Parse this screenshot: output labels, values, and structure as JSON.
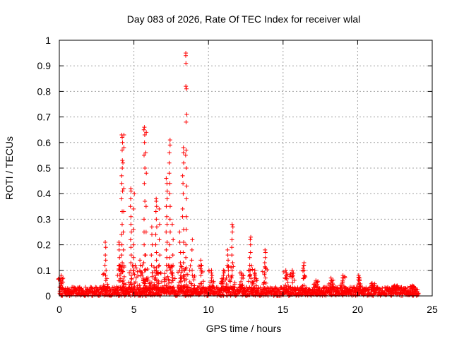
{
  "chart_data": {
    "type": "scatter",
    "title": "Day 083 of 2026, Rate Of TEC Index for receiver wlal",
    "xlabel": "GPS time / hours",
    "ylabel": "ROTI / TECUs",
    "xlim": [
      0,
      25
    ],
    "ylim": [
      0,
      1
    ],
    "x_ticks": [
      0,
      5,
      10,
      15,
      20,
      25
    ],
    "y_ticks": [
      0,
      0.1,
      0.2,
      0.3,
      0.4,
      0.5,
      0.6,
      0.7,
      0.8,
      0.9,
      1
    ],
    "x_tick_labels": [
      "0",
      "5",
      "10",
      "15",
      "20",
      "25"
    ],
    "y_tick_labels": [
      "0",
      "0.1",
      "0.2",
      "0.3",
      "0.4",
      "0.5",
      "0.6",
      "0.7",
      "0.8",
      "0.9",
      "1"
    ],
    "grid": true,
    "marker": "plus",
    "marker_color": "#ff0000",
    "baseline": {
      "x_range": [
        0,
        24.1
      ],
      "y_range": [
        0.0,
        0.035
      ]
    },
    "spikes": [
      {
        "x": 0.1,
        "points": [
          0.08,
          0.07,
          0.06,
          0.05,
          0.04
        ]
      },
      {
        "x": 3.1,
        "points": [
          0.21,
          0.19,
          0.16,
          0.14,
          0.12,
          0.1,
          0.08,
          0.06
        ]
      },
      {
        "x": 4.0,
        "points": [
          0.21,
          0.2,
          0.18,
          0.15,
          0.12,
          0.1,
          0.08
        ]
      },
      {
        "x": 4.2,
        "points": [
          0.63,
          0.62,
          0.6,
          0.57,
          0.53,
          0.5,
          0.47,
          0.44,
          0.41,
          0.38,
          0.33,
          0.28,
          0.24,
          0.2,
          0.16,
          0.13,
          0.1
        ]
      },
      {
        "x": 4.3,
        "points": [
          0.63,
          0.58,
          0.52,
          0.42,
          0.33,
          0.25,
          0.18,
          0.12
        ]
      },
      {
        "x": 4.8,
        "points": [
          0.42,
          0.41,
          0.38,
          0.35,
          0.31,
          0.28,
          0.25,
          0.22,
          0.19,
          0.16,
          0.13,
          0.1,
          0.08
        ]
      },
      {
        "x": 5.0,
        "points": [
          0.4,
          0.34,
          0.26,
          0.2,
          0.15,
          0.1
        ]
      },
      {
        "x": 5.4,
        "points": [
          0.14,
          0.12,
          0.1,
          0.08
        ]
      },
      {
        "x": 5.7,
        "points": [
          0.66,
          0.65,
          0.63,
          0.6,
          0.55,
          0.5,
          0.44,
          0.37,
          0.3,
          0.25,
          0.2,
          0.16,
          0.13,
          0.1
        ]
      },
      {
        "x": 5.8,
        "points": [
          0.64,
          0.56,
          0.48,
          0.35,
          0.25,
          0.16,
          0.1
        ]
      },
      {
        "x": 6.2,
        "points": [
          0.27,
          0.24,
          0.2,
          0.16,
          0.12,
          0.09
        ]
      },
      {
        "x": 6.5,
        "points": [
          0.38,
          0.37,
          0.35,
          0.33,
          0.3,
          0.27,
          0.24,
          0.2,
          0.17,
          0.14,
          0.11,
          0.09
        ]
      },
      {
        "x": 6.7,
        "points": [
          0.34,
          0.28,
          0.22,
          0.16,
          0.12
        ]
      },
      {
        "x": 7.2,
        "points": [
          0.46,
          0.44,
          0.41,
          0.38,
          0.35,
          0.31,
          0.28,
          0.25,
          0.21,
          0.18,
          0.15,
          0.12,
          0.1
        ]
      },
      {
        "x": 7.4,
        "points": [
          0.61,
          0.59,
          0.56,
          0.52,
          0.48,
          0.44,
          0.4,
          0.35,
          0.3,
          0.25,
          0.2,
          0.15,
          0.11
        ]
      },
      {
        "x": 7.6,
        "points": [
          0.28,
          0.22,
          0.16,
          0.12,
          0.09
        ]
      },
      {
        "x": 8.1,
        "points": [
          0.25,
          0.21,
          0.17,
          0.13,
          0.1
        ]
      },
      {
        "x": 8.3,
        "points": [
          0.58,
          0.56,
          0.52,
          0.47,
          0.44,
          0.4,
          0.34,
          0.31,
          0.26,
          0.21,
          0.17,
          0.13,
          0.1
        ]
      },
      {
        "x": 8.5,
        "points": [
          0.95,
          0.94,
          0.91,
          0.82,
          0.81,
          0.71,
          0.68,
          0.57,
          0.55,
          0.5,
          0.43,
          0.38,
          0.31,
          0.26,
          0.2,
          0.15,
          0.11
        ]
      },
      {
        "x": 8.9,
        "points": [
          0.22,
          0.18,
          0.14,
          0.1
        ]
      },
      {
        "x": 9.5,
        "points": [
          0.14,
          0.12,
          0.1,
          0.08
        ]
      },
      {
        "x": 10.2,
        "points": [
          0.1,
          0.09,
          0.08,
          0.07,
          0.06
        ]
      },
      {
        "x": 11.0,
        "points": [
          0.1,
          0.09,
          0.08,
          0.07
        ]
      },
      {
        "x": 11.3,
        "points": [
          0.18,
          0.16,
          0.14,
          0.12,
          0.1,
          0.08
        ]
      },
      {
        "x": 11.6,
        "points": [
          0.28,
          0.27,
          0.25,
          0.22,
          0.19,
          0.16,
          0.13,
          0.1,
          0.08
        ]
      },
      {
        "x": 12.2,
        "points": [
          0.09,
          0.08,
          0.07
        ]
      },
      {
        "x": 12.8,
        "points": [
          0.23,
          0.22,
          0.2,
          0.17,
          0.15,
          0.12,
          0.1,
          0.08
        ]
      },
      {
        "x": 13.1,
        "points": [
          0.1,
          0.09,
          0.08,
          0.07
        ]
      },
      {
        "x": 13.8,
        "points": [
          0.18,
          0.17,
          0.15,
          0.13,
          0.11,
          0.09,
          0.07
        ]
      },
      {
        "x": 15.2,
        "points": [
          0.1,
          0.09,
          0.08,
          0.07
        ]
      },
      {
        "x": 15.6,
        "points": [
          0.1,
          0.09,
          0.08,
          0.07
        ]
      },
      {
        "x": 16.4,
        "points": [
          0.13,
          0.12,
          0.1,
          0.08,
          0.07
        ]
      },
      {
        "x": 17.2,
        "points": [
          0.06,
          0.05,
          0.04
        ]
      },
      {
        "x": 18.2,
        "points": [
          0.07,
          0.06,
          0.05
        ]
      },
      {
        "x": 19.0,
        "points": [
          0.08,
          0.07,
          0.06,
          0.05
        ]
      },
      {
        "x": 20.1,
        "points": [
          0.08,
          0.07,
          0.06,
          0.05
        ]
      },
      {
        "x": 21.0,
        "points": [
          0.05,
          0.04
        ]
      },
      {
        "x": 22.5,
        "points": [
          0.04,
          0.035
        ]
      },
      {
        "x": 23.7,
        "points": [
          0.04,
          0.035
        ]
      }
    ]
  }
}
